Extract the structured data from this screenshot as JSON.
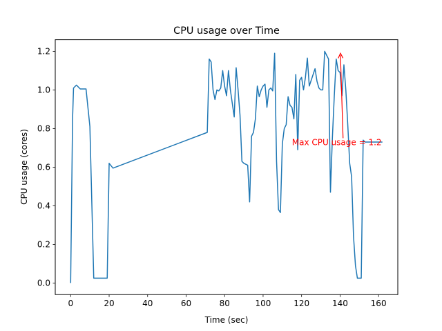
{
  "chart_data": {
    "type": "line",
    "title": "CPU usage over Time",
    "xlabel": "Time (sec)",
    "ylabel": "CPU usage (cores)",
    "xlim": [
      -8,
      170
    ],
    "ylim": [
      -0.06,
      1.26
    ],
    "xticks": [
      0,
      20,
      40,
      60,
      80,
      100,
      120,
      140,
      160
    ],
    "yticks": [
      0.0,
      0.2,
      0.4,
      0.6,
      0.8,
      1.0,
      1.2
    ],
    "ytick_labels": [
      "0.0",
      "0.2",
      "0.4",
      "0.6",
      "0.8",
      "1.0",
      "1.2"
    ],
    "grid": false,
    "line_color": "#1f77b4",
    "series": [
      {
        "x": [
          0,
          1,
          1.5,
          3,
          5,
          8,
          10,
          12,
          14,
          16,
          18,
          19,
          20,
          22,
          71,
          72,
          73,
          74,
          75,
          76,
          77,
          78,
          79,
          80,
          81,
          82,
          83,
          84,
          85,
          86,
          87,
          88,
          89,
          90,
          91,
          92,
          93,
          94,
          95,
          96,
          97,
          98,
          99,
          100,
          101,
          102,
          103,
          104,
          105,
          106,
          107,
          108,
          109,
          110,
          111,
          112,
          113,
          114,
          115,
          116,
          117,
          118,
          119,
          120,
          121,
          122,
          123,
          124,
          125,
          126,
          127,
          128,
          129,
          130,
          131,
          132,
          133,
          134,
          135,
          136,
          137,
          138,
          139,
          140,
          141,
          142,
          143,
          144,
          145,
          146,
          147,
          148,
          149,
          150,
          151,
          152,
          153,
          154,
          155,
          156,
          157,
          158,
          159,
          160,
          161,
          162
        ],
        "y": [
          0.0,
          0.85,
          1.01,
          1.025,
          1.005,
          1.005,
          0.81,
          0.025,
          0.025,
          0.025,
          0.025,
          0.025,
          0.62,
          0.595,
          0.78,
          1.16,
          1.145,
          1.0,
          0.95,
          1.0,
          0.995,
          1.01,
          1.1,
          1.02,
          0.97,
          1.1,
          1.0,
          0.93,
          0.86,
          1.115,
          1.0,
          0.87,
          0.63,
          0.62,
          0.615,
          0.61,
          0.42,
          0.76,
          0.78,
          0.85,
          1.02,
          0.965,
          1.0,
          1.02,
          1.03,
          0.91,
          1.0,
          1.01,
          0.995,
          1.19,
          0.63,
          0.38,
          0.365,
          0.72,
          0.8,
          0.82,
          0.965,
          0.92,
          0.91,
          0.85,
          1.08,
          0.69,
          1.05,
          1.065,
          1.0,
          1.065,
          1.165,
          1.02,
          1.05,
          1.08,
          1.11,
          1.045,
          1.01,
          1.0,
          1.0,
          1.2,
          1.18,
          1.16,
          0.47,
          0.75,
          0.97,
          1.16,
          1.1,
          1.09,
          0.97,
          1.13,
          1.0,
          0.82,
          0.62,
          0.55,
          0.24,
          0.09,
          0.025,
          0.025,
          0.025,
          0.74,
          0.73,
          0.73,
          0.73,
          0.73,
          0.73,
          0.73,
          0.73,
          0.73,
          0.73,
          0.73
        ]
      }
    ],
    "annotation": {
      "text": "Max CPU usage = 1.2",
      "text_x": 115,
      "text_y": 0.7,
      "arrow_to_x": 140.2,
      "arrow_to_y": 1.19,
      "color": "#ff0000"
    }
  }
}
